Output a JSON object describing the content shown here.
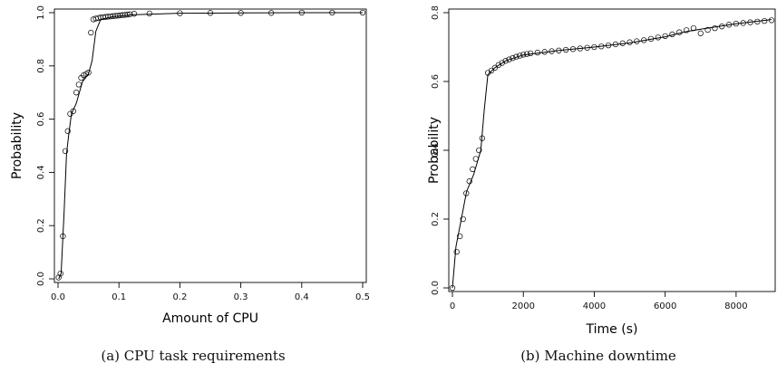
{
  "chart_data": [
    {
      "type": "line",
      "caption": "(a) CPU task requirements",
      "xlabel": "Amount of CPU",
      "ylabel": "Probability",
      "xlim": [
        0,
        0.5
      ],
      "ylim": [
        0,
        1
      ],
      "xticks": [
        "0.0",
        "0.1",
        "0.2",
        "0.3",
        "0.4",
        "0.5"
      ],
      "yticks": [
        "0.0",
        "0.2",
        "0.4",
        "0.6",
        "0.8",
        "1.0"
      ],
      "grid": false,
      "series": [
        {
          "style": "points",
          "x": [
            0.001,
            0.004,
            0.008,
            0.012,
            0.016,
            0.02,
            0.025,
            0.03,
            0.034,
            0.038,
            0.042,
            0.046,
            0.05,
            0.054,
            0.058,
            0.062,
            0.066,
            0.07,
            0.074,
            0.078,
            0.082,
            0.086,
            0.09,
            0.094,
            0.098,
            0.102,
            0.106,
            0.11,
            0.114,
            0.118,
            0.125,
            0.15,
            0.2,
            0.25,
            0.3,
            0.35,
            0.4,
            0.45,
            0.5
          ],
          "y": [
            0.005,
            0.02,
            0.16,
            0.48,
            0.555,
            0.62,
            0.63,
            0.7,
            0.73,
            0.755,
            0.765,
            0.77,
            0.775,
            0.925,
            0.975,
            0.978,
            0.98,
            0.982,
            0.983,
            0.984,
            0.985,
            0.986,
            0.987,
            0.988,
            0.989,
            0.99,
            0.991,
            0.992,
            0.993,
            0.994,
            0.996,
            0.997,
            0.998,
            0.999,
            0.999,
            0.999,
            1.0,
            1.0,
            1.0
          ]
        },
        {
          "style": "line",
          "x": [
            0.001,
            0.005,
            0.01,
            0.014,
            0.018,
            0.022,
            0.03,
            0.04,
            0.05,
            0.056,
            0.062,
            0.07,
            0.09,
            0.12,
            0.2,
            0.3,
            0.4,
            0.5
          ],
          "y": [
            0.0,
            0.02,
            0.25,
            0.47,
            0.55,
            0.62,
            0.66,
            0.74,
            0.77,
            0.82,
            0.93,
            0.975,
            0.985,
            0.992,
            0.998,
            0.999,
            1.0,
            1.0
          ]
        }
      ]
    },
    {
      "type": "line",
      "caption": "(b) Machine downtime",
      "xlabel": "Time (s)",
      "ylabel": "Probability",
      "xlim": [
        0,
        9000
      ],
      "ylim": [
        0,
        0.8
      ],
      "xticks": [
        "0",
        "2000",
        "4000",
        "6000",
        "8000"
      ],
      "yticks": [
        "0.0",
        "0.2",
        "0.4",
        "0.6",
        "0.8"
      ],
      "grid": false,
      "series": [
        {
          "style": "points",
          "x": [
            0,
            120,
            210,
            300,
            390,
            480,
            570,
            660,
            750,
            840,
            1000,
            1100,
            1200,
            1300,
            1400,
            1500,
            1600,
            1700,
            1800,
            1900,
            2000,
            2100,
            2200,
            2400,
            2600,
            2800,
            3000,
            3200,
            3400,
            3600,
            3800,
            4000,
            4200,
            4400,
            4600,
            4800,
            5000,
            5200,
            5400,
            5600,
            5800,
            6000,
            6200,
            6400,
            6600,
            6800,
            7000,
            7200,
            7400,
            7600,
            7800,
            8000,
            8200,
            8400,
            8600,
            8800,
            9000
          ],
          "y": [
            0.0,
            0.105,
            0.15,
            0.2,
            0.275,
            0.31,
            0.345,
            0.375,
            0.4,
            0.435,
            0.625,
            0.632,
            0.64,
            0.648,
            0.654,
            0.66,
            0.664,
            0.668,
            0.672,
            0.675,
            0.678,
            0.68,
            0.682,
            0.684,
            0.686,
            0.688,
            0.69,
            0.692,
            0.694,
            0.696,
            0.698,
            0.7,
            0.702,
            0.705,
            0.708,
            0.711,
            0.714,
            0.717,
            0.72,
            0.724,
            0.728,
            0.732,
            0.737,
            0.743,
            0.749,
            0.755,
            0.74,
            0.75,
            0.755,
            0.76,
            0.765,
            0.768,
            0.77,
            0.772,
            0.774,
            0.776,
            0.778
          ]
        },
        {
          "style": "line",
          "x": [
            0,
            100,
            250,
            400,
            600,
            800,
            900,
            1000,
            1200,
            1500,
            2000,
            3000,
            4000,
            5000,
            6000,
            6600,
            7000,
            8000,
            9000
          ],
          "y": [
            0.0,
            0.12,
            0.2,
            0.28,
            0.33,
            0.4,
            0.52,
            0.62,
            0.64,
            0.66,
            0.677,
            0.69,
            0.7,
            0.712,
            0.73,
            0.745,
            0.752,
            0.768,
            0.78
          ]
        }
      ]
    }
  ]
}
